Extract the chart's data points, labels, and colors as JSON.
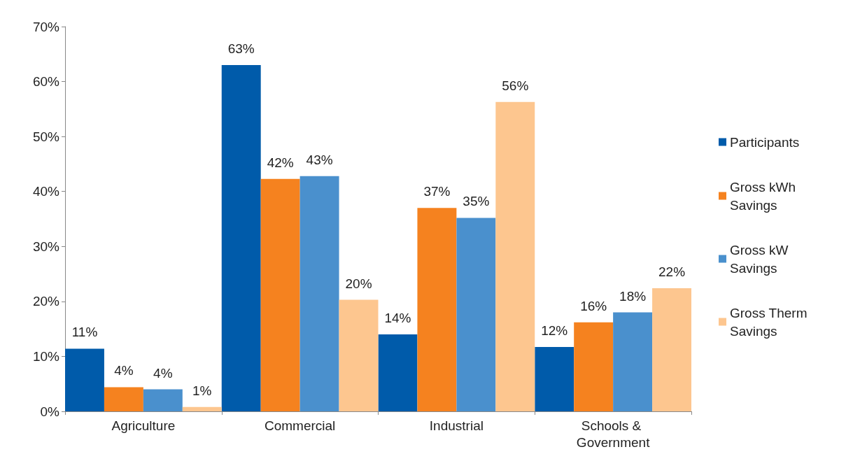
{
  "chart_data": {
    "type": "bar",
    "categories": [
      "Agriculture",
      "Commercial",
      "Industrial",
      "Schools & Government"
    ],
    "series": [
      {
        "name": "Participants",
        "color": "#005baa",
        "values": [
          11.4,
          63.0,
          14.0,
          11.7
        ],
        "value_labels": [
          "11%",
          "63%",
          "14%",
          "12%"
        ]
      },
      {
        "name": "Gross kWh Savings",
        "color": "#f5821f",
        "values": [
          4.4,
          42.3,
          37.0,
          16.2
        ],
        "value_labels": [
          "4%",
          "42%",
          "37%",
          "16%"
        ]
      },
      {
        "name": "Gross kW Savings",
        "color": "#4a90cd",
        "values": [
          4.0,
          42.8,
          35.2,
          18.0
        ],
        "value_labels": [
          "4%",
          "43%",
          "35%",
          "18%"
        ]
      },
      {
        "name": "Gross Therm Savings",
        "color": "#fdc68f",
        "values": [
          0.8,
          20.3,
          56.3,
          22.4
        ],
        "value_labels": [
          "1%",
          "20%",
          "56%",
          "22%"
        ]
      }
    ],
    "ylim": [
      0,
      70
    ],
    "yticks": [
      {
        "value": 0,
        "label": "0%"
      },
      {
        "value": 10,
        "label": "10%"
      },
      {
        "value": 20,
        "label": "20%"
      },
      {
        "value": 30,
        "label": "30%"
      },
      {
        "value": 40,
        "label": "40%"
      },
      {
        "value": 50,
        "label": "50%"
      },
      {
        "value": 60,
        "label": "60%"
      },
      {
        "value": 70,
        "label": "70%"
      }
    ],
    "grid": false,
    "legend": "right"
  }
}
